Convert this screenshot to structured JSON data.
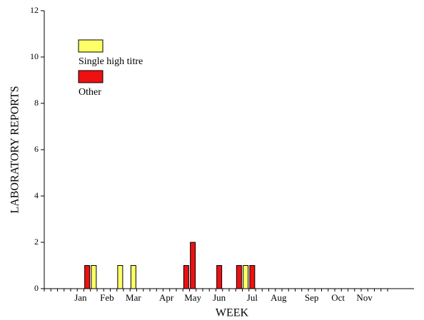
{
  "chart_data": {
    "type": "bar",
    "stacked": true,
    "xlabel": "WEEK",
    "ylabel": "LABORATORY REPORTS",
    "categories": [
      null,
      null,
      null,
      null,
      null,
      "Jan",
      null,
      null,
      null,
      "Feb",
      null,
      null,
      null,
      "Mar",
      null,
      null,
      null,
      null,
      "Apr",
      null,
      null,
      null,
      "May",
      null,
      null,
      null,
      "Jun",
      null,
      null,
      null,
      null,
      "Jul",
      null,
      null,
      null,
      "Aug",
      null,
      null,
      null,
      null,
      "Sep",
      null,
      null,
      null,
      "Oct",
      null,
      null,
      null,
      "Nov",
      null,
      null,
      null,
      null,
      null,
      null,
      null
    ],
    "series": [
      {
        "name": "Single high titre",
        "color": "#ffff66",
        "values": [
          0,
          0,
          0,
          0,
          0,
          0,
          0,
          1,
          0,
          0,
          0,
          1,
          0,
          1,
          0,
          0,
          0,
          0,
          0,
          0,
          0,
          0,
          0,
          0,
          0,
          0,
          0,
          0,
          0,
          0,
          1,
          0,
          0,
          0,
          0,
          0,
          0,
          0,
          0,
          0,
          0,
          0,
          0,
          0,
          0,
          0,
          0,
          0,
          0,
          0,
          0,
          0,
          0,
          0,
          0,
          0
        ]
      },
      {
        "name": "Other",
        "color": "#ee1111",
        "values": [
          0,
          0,
          0,
          0,
          0,
          0,
          1,
          0,
          0,
          0,
          0,
          0,
          0,
          0,
          0,
          0,
          0,
          0,
          0,
          0,
          0,
          1,
          2,
          0,
          0,
          0,
          1,
          0,
          0,
          1,
          0,
          1,
          0,
          0,
          0,
          0,
          0,
          0,
          0,
          0,
          0,
          0,
          0,
          0,
          0,
          0,
          0,
          0,
          0,
          0,
          0,
          0,
          0,
          0,
          0,
          0
        ]
      }
    ],
    "ylim": [
      0,
      12
    ],
    "yticks": [
      0,
      2,
      4,
      6,
      8,
      10,
      12
    ],
    "grid": false
  }
}
